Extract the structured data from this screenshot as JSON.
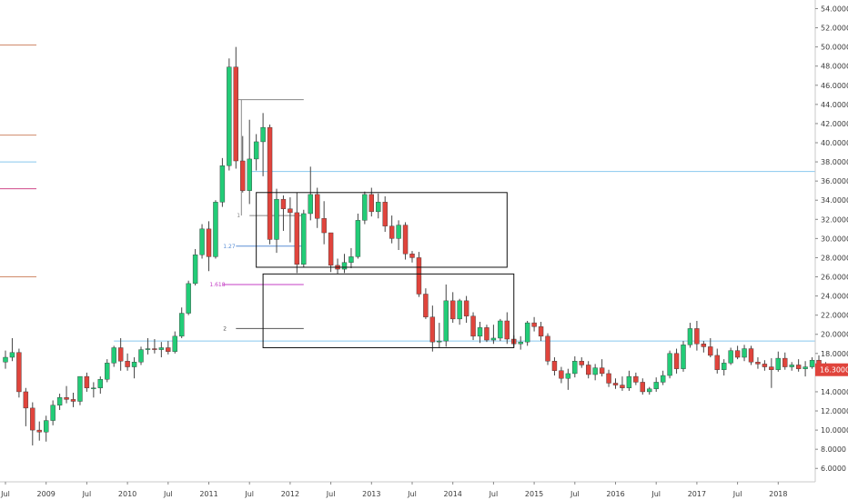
{
  "chart_data": {
    "type": "candlestick",
    "period": "monthly",
    "colors": {
      "up": "#22cc77",
      "down": "#e0443c",
      "wick": "#444444",
      "price_tag_bg": "#e0443c",
      "price_tag_text": "#ffffff",
      "horizontal_line": "#88c8ee",
      "axis_line": "#c8c8c8",
      "box_stroke": "#111111"
    },
    "y_axis": {
      "min": 4.6,
      "max": 54.9,
      "ticks": [
        "54.0000",
        "52.0000",
        "50.0000",
        "48.0000",
        "46.0000",
        "44.0000",
        "42.0000",
        "40.0000",
        "38.0000",
        "36.0000",
        "34.0000",
        "32.0000",
        "30.0000",
        "28.0000",
        "26.0000",
        "24.0000",
        "22.0000",
        "20.0000",
        "18.0000",
        "16.0000",
        "14.0000",
        "12.0000",
        "10.0000",
        "8.0000",
        "6.0000"
      ],
      "position": "right"
    },
    "last_price": {
      "label": "16.3000",
      "value": 16.3
    },
    "x_axis": {
      "labels": [
        {
          "text": "Jul",
          "t": 0
        },
        {
          "text": "2009",
          "t": 6
        },
        {
          "text": "Jul",
          "t": 12
        },
        {
          "text": "2010",
          "t": 18
        },
        {
          "text": "Jul",
          "t": 24
        },
        {
          "text": "2011",
          "t": 30
        },
        {
          "text": "Jul",
          "t": 36
        },
        {
          "text": "2012",
          "t": 42
        },
        {
          "text": "Jul",
          "t": 48
        },
        {
          "text": "2013",
          "t": 54
        },
        {
          "text": "Jul",
          "t": 60
        },
        {
          "text": "2014",
          "t": 66
        },
        {
          "text": "Jul",
          "t": 72
        },
        {
          "text": "2015",
          "t": 78
        },
        {
          "text": "Jul",
          "t": 84
        },
        {
          "text": "2016",
          "t": 90
        },
        {
          "text": "Jul",
          "t": 96
        },
        {
          "text": "2017",
          "t": 102
        },
        {
          "text": "Jul",
          "t": 108
        },
        {
          "text": "2018",
          "t": 114
        }
      ]
    },
    "candles": [
      {
        "t": 0,
        "o": 17.1,
        "h": 18.3,
        "l": 16.4,
        "c": 17.6
      },
      {
        "t": 1,
        "o": 17.6,
        "h": 19.6,
        "l": 17.2,
        "c": 18.1
      },
      {
        "t": 2,
        "o": 18.1,
        "h": 18.5,
        "l": 13.4,
        "c": 14.0
      },
      {
        "t": 3,
        "o": 14.0,
        "h": 14.4,
        "l": 10.4,
        "c": 12.3
      },
      {
        "t": 4,
        "o": 12.3,
        "h": 12.9,
        "l": 8.4,
        "c": 10.0
      },
      {
        "t": 5,
        "o": 10.0,
        "h": 10.9,
        "l": 8.9,
        "c": 9.8
      },
      {
        "t": 6,
        "o": 9.8,
        "h": 11.5,
        "l": 8.8,
        "c": 11.0
      },
      {
        "t": 7,
        "o": 11.0,
        "h": 13.1,
        "l": 10.5,
        "c": 12.6
      },
      {
        "t": 8,
        "o": 12.6,
        "h": 13.8,
        "l": 12.1,
        "c": 13.4
      },
      {
        "t": 9,
        "o": 13.4,
        "h": 14.6,
        "l": 12.8,
        "c": 13.2
      },
      {
        "t": 10,
        "o": 13.2,
        "h": 13.9,
        "l": 12.4,
        "c": 13.0
      },
      {
        "t": 11,
        "o": 13.0,
        "h": 15.6,
        "l": 12.6,
        "c": 15.6
      },
      {
        "t": 12,
        "o": 15.6,
        "h": 16.0,
        "l": 14.0,
        "c": 14.4
      },
      {
        "t": 13,
        "o": 14.4,
        "h": 15.0,
        "l": 13.4,
        "c": 14.4
      },
      {
        "t": 14,
        "o": 14.4,
        "h": 15.6,
        "l": 13.8,
        "c": 15.3
      },
      {
        "t": 15,
        "o": 15.3,
        "h": 17.4,
        "l": 15.0,
        "c": 17.0
      },
      {
        "t": 16,
        "o": 17.0,
        "h": 18.8,
        "l": 16.6,
        "c": 18.6
      },
      {
        "t": 17,
        "o": 18.6,
        "h": 19.6,
        "l": 16.2,
        "c": 17.2
      },
      {
        "t": 18,
        "o": 17.2,
        "h": 18.0,
        "l": 16.2,
        "c": 16.6
      },
      {
        "t": 19,
        "o": 16.6,
        "h": 17.6,
        "l": 15.4,
        "c": 17.1
      },
      {
        "t": 20,
        "o": 17.1,
        "h": 18.7,
        "l": 16.8,
        "c": 18.4
      },
      {
        "t": 21,
        "o": 18.4,
        "h": 19.6,
        "l": 17.9,
        "c": 18.5
      },
      {
        "t": 22,
        "o": 18.5,
        "h": 19.5,
        "l": 18.0,
        "c": 18.4
      },
      {
        "t": 23,
        "o": 18.4,
        "h": 19.2,
        "l": 17.6,
        "c": 18.6
      },
      {
        "t": 24,
        "o": 18.6,
        "h": 19.3,
        "l": 17.9,
        "c": 18.2
      },
      {
        "t": 25,
        "o": 18.2,
        "h": 20.3,
        "l": 18.0,
        "c": 19.8
      },
      {
        "t": 26,
        "o": 19.8,
        "h": 22.8,
        "l": 19.6,
        "c": 22.2
      },
      {
        "t": 27,
        "o": 22.2,
        "h": 25.6,
        "l": 22.0,
        "c": 25.3
      },
      {
        "t": 28,
        "o": 25.3,
        "h": 28.9,
        "l": 25.1,
        "c": 28.3
      },
      {
        "t": 29,
        "o": 28.3,
        "h": 31.5,
        "l": 27.9,
        "c": 31.0
      },
      {
        "t": 30,
        "o": 31.0,
        "h": 31.8,
        "l": 26.6,
        "c": 28.1
      },
      {
        "t": 31,
        "o": 28.1,
        "h": 34.0,
        "l": 27.9,
        "c": 33.8
      },
      {
        "t": 32,
        "o": 33.8,
        "h": 38.4,
        "l": 33.3,
        "c": 37.6
      },
      {
        "t": 33,
        "o": 37.6,
        "h": 48.8,
        "l": 37.1,
        "c": 47.9
      },
      {
        "t": 34,
        "o": 47.9,
        "h": 50.0,
        "l": 37.3,
        "c": 38.1
      },
      {
        "t": 35,
        "o": 38.1,
        "h": 40.7,
        "l": 34.8,
        "c": 35.0
      },
      {
        "t": 36,
        "o": 35.0,
        "h": 42.4,
        "l": 33.6,
        "c": 38.3
      },
      {
        "t": 37,
        "o": 38.3,
        "h": 40.9,
        "l": 37.1,
        "c": 40.1
      },
      {
        "t": 38,
        "o": 40.1,
        "h": 43.1,
        "l": 36.5,
        "c": 41.6
      },
      {
        "t": 39,
        "o": 41.6,
        "h": 41.9,
        "l": 29.4,
        "c": 29.9
      },
      {
        "t": 40,
        "o": 29.9,
        "h": 35.2,
        "l": 28.5,
        "c": 34.1
      },
      {
        "t": 41,
        "o": 34.1,
        "h": 34.5,
        "l": 30.8,
        "c": 33.1
      },
      {
        "t": 42,
        "o": 33.1,
        "h": 34.3,
        "l": 29.6,
        "c": 32.7
      },
      {
        "t": 43,
        "o": 32.7,
        "h": 34.8,
        "l": 26.4,
        "c": 27.3
      },
      {
        "t": 44,
        "o": 27.3,
        "h": 33.0,
        "l": 27.0,
        "c": 32.6
      },
      {
        "t": 45,
        "o": 32.6,
        "h": 37.5,
        "l": 31.9,
        "c": 34.6
      },
      {
        "t": 46,
        "o": 34.6,
        "h": 35.3,
        "l": 31.1,
        "c": 32.1
      },
      {
        "t": 47,
        "o": 32.1,
        "h": 33.9,
        "l": 29.4,
        "c": 30.6
      },
      {
        "t": 48,
        "o": 30.6,
        "h": 30.6,
        "l": 26.5,
        "c": 27.2
      },
      {
        "t": 49,
        "o": 27.2,
        "h": 27.9,
        "l": 26.3,
        "c": 26.8
      },
      {
        "t": 50,
        "o": 26.8,
        "h": 28.4,
        "l": 26.4,
        "c": 27.5
      },
      {
        "t": 51,
        "o": 27.5,
        "h": 29.0,
        "l": 26.9,
        "c": 28.1
      },
      {
        "t": 52,
        "o": 28.1,
        "h": 32.6,
        "l": 27.9,
        "c": 31.9
      },
      {
        "t": 53,
        "o": 31.9,
        "h": 34.9,
        "l": 31.5,
        "c": 34.6
      },
      {
        "t": 54,
        "o": 34.6,
        "h": 35.3,
        "l": 32.3,
        "c": 32.8
      },
      {
        "t": 55,
        "o": 32.8,
        "h": 34.7,
        "l": 32.1,
        "c": 33.8
      },
      {
        "t": 56,
        "o": 33.8,
        "h": 34.4,
        "l": 30.7,
        "c": 31.3
      },
      {
        "t": 57,
        "o": 31.3,
        "h": 32.4,
        "l": 29.5,
        "c": 30.0
      },
      {
        "t": 58,
        "o": 30.0,
        "h": 31.9,
        "l": 28.8,
        "c": 31.4
      },
      {
        "t": 59,
        "o": 31.4,
        "h": 31.7,
        "l": 27.8,
        "c": 28.4
      },
      {
        "t": 60,
        "o": 28.4,
        "h": 28.7,
        "l": 27.5,
        "c": 28.0
      },
      {
        "t": 61,
        "o": 28.0,
        "h": 28.6,
        "l": 23.9,
        "c": 24.2
      },
      {
        "t": 62,
        "o": 24.2,
        "h": 24.8,
        "l": 21.6,
        "c": 21.8
      },
      {
        "t": 63,
        "o": 21.8,
        "h": 23.0,
        "l": 18.2,
        "c": 19.2
      },
      {
        "t": 64,
        "o": 19.2,
        "h": 21.2,
        "l": 18.6,
        "c": 19.3
      },
      {
        "t": 65,
        "o": 19.3,
        "h": 25.2,
        "l": 18.7,
        "c": 23.5
      },
      {
        "t": 66,
        "o": 23.5,
        "h": 24.4,
        "l": 21.2,
        "c": 21.6
      },
      {
        "t": 67,
        "o": 21.6,
        "h": 23.7,
        "l": 21.0,
        "c": 23.5
      },
      {
        "t": 68,
        "o": 23.5,
        "h": 24.0,
        "l": 21.2,
        "c": 21.9
      },
      {
        "t": 69,
        "o": 21.9,
        "h": 22.3,
        "l": 19.4,
        "c": 19.8
      },
      {
        "t": 70,
        "o": 19.8,
        "h": 21.3,
        "l": 19.1,
        "c": 20.7
      },
      {
        "t": 71,
        "o": 20.7,
        "h": 21.0,
        "l": 19.2,
        "c": 19.4
      },
      {
        "t": 72,
        "o": 19.4,
        "h": 21.0,
        "l": 19.0,
        "c": 19.6
      },
      {
        "t": 73,
        "o": 19.6,
        "h": 21.6,
        "l": 19.3,
        "c": 21.4
      },
      {
        "t": 74,
        "o": 21.4,
        "h": 22.3,
        "l": 19.0,
        "c": 19.5
      },
      {
        "t": 75,
        "o": 19.5,
        "h": 19.9,
        "l": 18.7,
        "c": 19.0
      },
      {
        "t": 76,
        "o": 19.0,
        "h": 19.8,
        "l": 18.4,
        "c": 19.2
      },
      {
        "t": 77,
        "o": 19.2,
        "h": 21.4,
        "l": 18.8,
        "c": 21.2
      },
      {
        "t": 78,
        "o": 21.2,
        "h": 21.8,
        "l": 20.3,
        "c": 20.8
      },
      {
        "t": 79,
        "o": 20.8,
        "h": 21.3,
        "l": 19.3,
        "c": 19.8
      },
      {
        "t": 80,
        "o": 19.8,
        "h": 20.1,
        "l": 16.8,
        "c": 17.2
      },
      {
        "t": 81,
        "o": 17.2,
        "h": 17.6,
        "l": 15.7,
        "c": 16.2
      },
      {
        "t": 82,
        "o": 16.2,
        "h": 16.6,
        "l": 14.9,
        "c": 15.4
      },
      {
        "t": 83,
        "o": 15.4,
        "h": 16.4,
        "l": 14.2,
        "c": 15.9
      },
      {
        "t": 84,
        "o": 15.9,
        "h": 17.7,
        "l": 15.5,
        "c": 17.2
      },
      {
        "t": 85,
        "o": 17.2,
        "h": 17.6,
        "l": 16.5,
        "c": 16.8
      },
      {
        "t": 86,
        "o": 16.8,
        "h": 17.2,
        "l": 15.4,
        "c": 15.8
      },
      {
        "t": 87,
        "o": 15.8,
        "h": 16.9,
        "l": 15.2,
        "c": 16.5
      },
      {
        "t": 88,
        "o": 16.5,
        "h": 17.4,
        "l": 15.6,
        "c": 15.9
      },
      {
        "t": 89,
        "o": 15.9,
        "h": 16.3,
        "l": 14.5,
        "c": 14.9
      },
      {
        "t": 90,
        "o": 14.9,
        "h": 15.4,
        "l": 14.3,
        "c": 14.7
      },
      {
        "t": 91,
        "o": 14.7,
        "h": 15.6,
        "l": 14.1,
        "c": 14.4
      },
      {
        "t": 92,
        "o": 14.4,
        "h": 16.2,
        "l": 14.1,
        "c": 15.6
      },
      {
        "t": 93,
        "o": 15.6,
        "h": 16.0,
        "l": 14.7,
        "c": 15.0
      },
      {
        "t": 94,
        "o": 15.0,
        "h": 15.4,
        "l": 13.7,
        "c": 14.0
      },
      {
        "t": 95,
        "o": 14.0,
        "h": 14.5,
        "l": 13.7,
        "c": 14.3
      },
      {
        "t": 96,
        "o": 14.3,
        "h": 15.5,
        "l": 14.0,
        "c": 15.0
      },
      {
        "t": 97,
        "o": 15.0,
        "h": 16.2,
        "l": 14.7,
        "c": 15.7
      },
      {
        "t": 98,
        "o": 15.7,
        "h": 18.3,
        "l": 15.4,
        "c": 18.0
      },
      {
        "t": 99,
        "o": 18.0,
        "h": 18.5,
        "l": 15.9,
        "c": 16.4
      },
      {
        "t": 100,
        "o": 16.4,
        "h": 19.3,
        "l": 16.1,
        "c": 18.9
      },
      {
        "t": 101,
        "o": 18.9,
        "h": 21.2,
        "l": 18.6,
        "c": 20.6
      },
      {
        "t": 102,
        "o": 20.6,
        "h": 21.4,
        "l": 18.3,
        "c": 19.0
      },
      {
        "t": 103,
        "o": 19.0,
        "h": 19.3,
        "l": 18.1,
        "c": 18.7
      },
      {
        "t": 104,
        "o": 18.7,
        "h": 19.6,
        "l": 17.6,
        "c": 17.8
      },
      {
        "t": 105,
        "o": 17.8,
        "h": 18.5,
        "l": 15.9,
        "c": 16.3
      },
      {
        "t": 106,
        "o": 16.3,
        "h": 17.4,
        "l": 15.7,
        "c": 17.0
      },
      {
        "t": 107,
        "o": 17.0,
        "h": 18.6,
        "l": 16.8,
        "c": 18.3
      },
      {
        "t": 108,
        "o": 18.3,
        "h": 18.8,
        "l": 17.4,
        "c": 17.6
      },
      {
        "t": 109,
        "o": 17.6,
        "h": 18.9,
        "l": 17.2,
        "c": 18.5
      },
      {
        "t": 110,
        "o": 18.5,
        "h": 18.8,
        "l": 16.8,
        "c": 17.1
      },
      {
        "t": 111,
        "o": 17.1,
        "h": 17.6,
        "l": 16.4,
        "c": 16.9
      },
      {
        "t": 112,
        "o": 16.9,
        "h": 17.3,
        "l": 16.2,
        "c": 16.6
      },
      {
        "t": 113,
        "o": 16.6,
        "h": 17.5,
        "l": 14.4,
        "c": 16.3
      },
      {
        "t": 114,
        "o": 16.3,
        "h": 18.2,
        "l": 16.1,
        "c": 17.5
      },
      {
        "t": 115,
        "o": 17.5,
        "h": 18.1,
        "l": 16.3,
        "c": 16.6
      },
      {
        "t": 116,
        "o": 16.6,
        "h": 17.1,
        "l": 16.2,
        "c": 16.8
      },
      {
        "t": 117,
        "o": 16.8,
        "h": 17.4,
        "l": 16.1,
        "c": 16.4
      },
      {
        "t": 118,
        "o": 16.4,
        "h": 17.2,
        "l": 15.6,
        "c": 16.6
      },
      {
        "t": 119,
        "o": 16.6,
        "h": 17.6,
        "l": 16.4,
        "c": 17.3
      },
      {
        "t": 120,
        "o": 17.3,
        "h": 17.8,
        "l": 16.2,
        "c": 16.6
      },
      {
        "t": 121,
        "o": 16.6,
        "h": 17.1,
        "l": 15.9,
        "c": 16.2
      },
      {
        "t": 122,
        "o": 16.2,
        "h": 16.6,
        "l": 15.8,
        "c": 16.3
      }
    ],
    "horizontal_lines": [
      {
        "y": 37.0,
        "t_start": 36,
        "color": "#88c8ee"
      },
      {
        "y": 19.3,
        "t_start": 16,
        "color": "#88c8ee"
      }
    ],
    "rectangles": [
      {
        "t1": 37,
        "t2": 74,
        "y_top": 34.8,
        "y_bottom": 27.0
      },
      {
        "t1": 38,
        "t2": 75,
        "y_top": 26.3,
        "y_bottom": 18.6
      }
    ],
    "fib_levels": [
      {
        "label": "1",
        "y": 32.4,
        "t1": 36,
        "t2": 44,
        "color": "#888888"
      },
      {
        "label": "1.27",
        "y": 29.2,
        "t1": 34,
        "t2": 44,
        "color": "#5b8fd6"
      },
      {
        "label": "1.618",
        "y": 25.2,
        "t1": 32,
        "t2": 44,
        "color": "#c43fc4"
      },
      {
        "label": "2",
        "y": 20.6,
        "t1": 34,
        "t2": 44,
        "color": "#555555"
      }
    ],
    "top_level_line": {
      "y": 44.5,
      "t1": 34,
      "t2": 44,
      "color": "#888888"
    },
    "left_stubs": [
      {
        "y": 50.2,
        "color": "#d08a6a"
      },
      {
        "y": 40.8,
        "color": "#d08a6a"
      },
      {
        "y": 38.0,
        "color": "#88c8ee"
      },
      {
        "y": 35.2,
        "color": "#d04a8a"
      },
      {
        "y": 26.0,
        "color": "#d08a6a"
      }
    ]
  }
}
